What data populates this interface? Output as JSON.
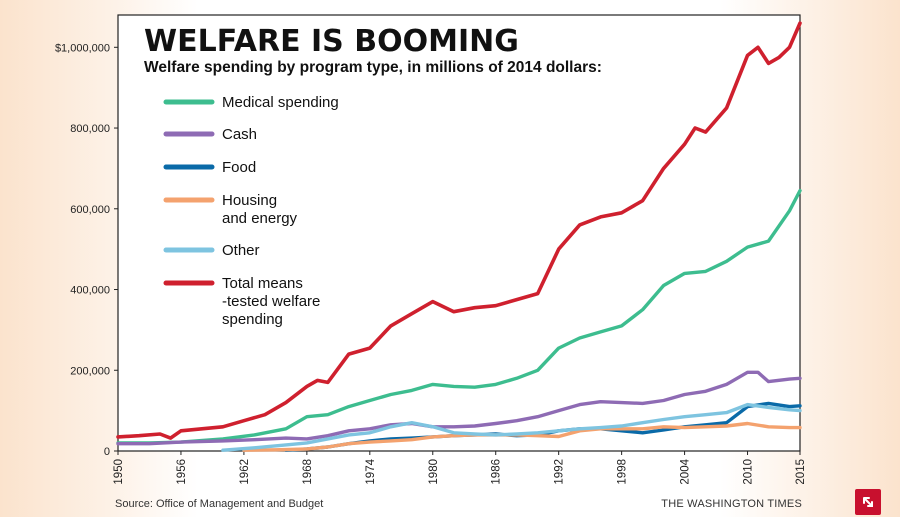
{
  "chart_data": {
    "type": "line",
    "title": "WELFARE IS BOOMING",
    "subtitle": "Welfare spending by program type, in millions of 2014 dollars:",
    "xlabel": "",
    "ylabel": "",
    "xlim": [
      1950,
      2015
    ],
    "ylim": [
      0,
      1080000
    ],
    "y_ticks": [
      0,
      200000,
      400000,
      600000,
      800000,
      1000000
    ],
    "y_tick_labels": [
      "0",
      "200,000",
      "400,000",
      "600,000",
      "800,000",
      "$1,000,000"
    ],
    "x_ticks": [
      1950,
      1956,
      1962,
      1968,
      1974,
      1980,
      1986,
      1992,
      1998,
      2004,
      2010,
      2015
    ],
    "x_tick_labels": [
      "1950",
      "1956",
      "1962",
      "1968",
      "1974",
      "1980",
      "1986",
      "1992",
      "1998",
      "2004",
      "2010",
      "2015"
    ],
    "grid": "horizontal",
    "legend_position": "top-left",
    "series": [
      {
        "name": "Medical spending",
        "color": "#3dbd8f",
        "x": [
          1950,
          1953,
          1956,
          1960,
          1963,
          1966,
          1968,
          1970,
          1972,
          1974,
          1976,
          1978,
          1980,
          1982,
          1984,
          1986,
          1988,
          1990,
          1992,
          1994,
          1996,
          1998,
          2000,
          2002,
          2004,
          2006,
          2008,
          2010,
          2012,
          2014,
          2015
        ],
        "y": [
          20000,
          20000,
          22000,
          30000,
          40000,
          55000,
          85000,
          90000,
          110000,
          125000,
          140000,
          150000,
          165000,
          160000,
          158000,
          165000,
          180000,
          200000,
          255000,
          280000,
          295000,
          310000,
          350000,
          410000,
          440000,
          445000,
          470000,
          505000,
          520000,
          595000,
          645000
        ]
      },
      {
        "name": "Cash",
        "color": "#8e6bb4",
        "x": [
          1950,
          1953,
          1956,
          1960,
          1963,
          1966,
          1968,
          1970,
          1972,
          1974,
          1976,
          1978,
          1980,
          1982,
          1984,
          1986,
          1988,
          1990,
          1992,
          1994,
          1996,
          1998,
          2000,
          2002,
          2004,
          2006,
          2008,
          2010,
          2011,
          2012,
          2014,
          2015
        ],
        "y": [
          18000,
          18000,
          22000,
          25000,
          28000,
          32000,
          30000,
          38000,
          50000,
          55000,
          65000,
          68000,
          60000,
          60000,
          62000,
          68000,
          75000,
          85000,
          100000,
          115000,
          122000,
          120000,
          118000,
          125000,
          140000,
          148000,
          165000,
          195000,
          195000,
          172000,
          178000,
          180000
        ]
      },
      {
        "name": "Food",
        "color": "#0a6aa8",
        "x": [
          1966,
          1968,
          1970,
          1972,
          1974,
          1976,
          1978,
          1980,
          1982,
          1984,
          1986,
          1988,
          1990,
          1992,
          1994,
          1996,
          1998,
          2000,
          2002,
          2004,
          2006,
          2008,
          2010,
          2012,
          2014,
          2015
        ],
        "y": [
          2000,
          5000,
          10000,
          18000,
          25000,
          30000,
          32000,
          35000,
          38000,
          40000,
          42000,
          38000,
          40000,
          50000,
          55000,
          55000,
          50000,
          45000,
          52000,
          60000,
          65000,
          70000,
          110000,
          118000,
          110000,
          112000
        ]
      },
      {
        "name": "Housing and energy",
        "color": "#f4a26e",
        "x": [
          1962,
          1965,
          1968,
          1970,
          1972,
          1974,
          1976,
          1978,
          1980,
          1982,
          1984,
          1986,
          1988,
          1990,
          1992,
          1994,
          1996,
          1998,
          2000,
          2002,
          2004,
          2006,
          2008,
          2010,
          2012,
          2014,
          2015
        ],
        "y": [
          2000,
          3000,
          5000,
          10000,
          18000,
          22000,
          25000,
          28000,
          35000,
          38000,
          40000,
          40000,
          40000,
          38000,
          36000,
          50000,
          55000,
          55000,
          55000,
          60000,
          58000,
          60000,
          62000,
          68000,
          60000,
          58000,
          58000
        ]
      },
      {
        "name": "Other",
        "color": "#7ec4e0",
        "x": [
          1960,
          1963,
          1966,
          1968,
          1970,
          1972,
          1974,
          1976,
          1978,
          1980,
          1982,
          1984,
          1986,
          1988,
          1990,
          1992,
          1994,
          1996,
          1998,
          2000,
          2002,
          2004,
          2006,
          2008,
          2010,
          2012,
          2014,
          2015
        ],
        "y": [
          2000,
          8000,
          15000,
          20000,
          30000,
          40000,
          45000,
          60000,
          70000,
          60000,
          45000,
          42000,
          40000,
          42000,
          45000,
          50000,
          55000,
          58000,
          62000,
          70000,
          78000,
          85000,
          90000,
          95000,
          115000,
          108000,
          102000,
          100000
        ]
      },
      {
        "name": "Total means -tested welfare spending",
        "color": "#cf202e",
        "x": [
          1950,
          1952,
          1954,
          1955,
          1956,
          1958,
          1960,
          1962,
          1964,
          1966,
          1968,
          1969,
          1970,
          1972,
          1974,
          1976,
          1978,
          1980,
          1982,
          1984,
          1986,
          1988,
          1990,
          1992,
          1994,
          1996,
          1998,
          2000,
          2002,
          2004,
          2005,
          2006,
          2008,
          2010,
          2011,
          2012,
          2013,
          2014,
          2015
        ],
        "y": [
          35000,
          38000,
          42000,
          32000,
          50000,
          55000,
          60000,
          75000,
          90000,
          120000,
          160000,
          175000,
          170000,
          240000,
          255000,
          310000,
          340000,
          370000,
          345000,
          355000,
          360000,
          375000,
          390000,
          500000,
          560000,
          580000,
          590000,
          620000,
          700000,
          760000,
          800000,
          790000,
          850000,
          980000,
          1000000,
          960000,
          975000,
          1000000,
          1060000
        ]
      }
    ]
  },
  "legend": {
    "items": [
      {
        "line1": "Medical spending",
        "line2": "",
        "line3": "",
        "color": "#3dbd8f"
      },
      {
        "line1": "Cash",
        "line2": "",
        "line3": "",
        "color": "#8e6bb4"
      },
      {
        "line1": "Food",
        "line2": "",
        "line3": "",
        "color": "#0a6aa8"
      },
      {
        "line1": "Housing",
        "line2": "and energy",
        "line3": "",
        "color": "#f4a26e"
      },
      {
        "line1": "Other",
        "line2": "",
        "line3": "",
        "color": "#7ec4e0"
      },
      {
        "line1": "Total means",
        "line2": "-tested welfare",
        "line3": "spending",
        "color": "#cf202e"
      }
    ]
  },
  "footer": {
    "source": "Source: Office of Management and Budget",
    "publisher": "THE WASHINGTON TIMES"
  },
  "corner_button": {
    "icon": "expand-arrow-icon",
    "color": "#c8102e"
  }
}
